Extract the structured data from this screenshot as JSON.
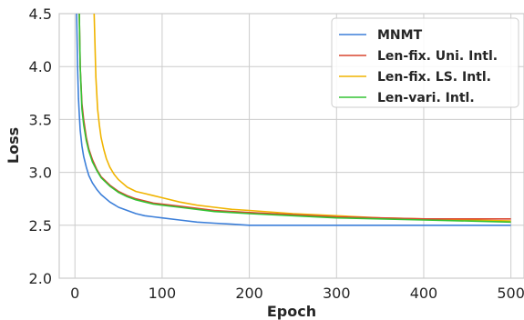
{
  "chart_data": {
    "type": "line",
    "xlabel": "Epoch",
    "ylabel": "Loss",
    "xlim": [
      -18,
      515
    ],
    "ylim": [
      2.0,
      4.5
    ],
    "x_ticks": [
      0,
      100,
      200,
      300,
      400,
      500
    ],
    "y_ticks": [
      2.0,
      2.5,
      3.0,
      3.5,
      4.0,
      4.5
    ],
    "x_tick_labels": [
      "0",
      "100",
      "200",
      "300",
      "400",
      "500"
    ],
    "y_tick_labels": [
      "2.0",
      "2.5",
      "3.0",
      "3.5",
      "4.0",
      "4.5"
    ],
    "grid": true,
    "legend_position": "top-right",
    "series": [
      {
        "name": "MNMT",
        "color": "#3c7fd9",
        "x": [
          1,
          2,
          3,
          4,
          5,
          6,
          8,
          10,
          13,
          16,
          20,
          25,
          30,
          40,
          50,
          60,
          70,
          80,
          90,
          100,
          120,
          140,
          160,
          180,
          200,
          250,
          300,
          350,
          400,
          450,
          500
        ],
        "y": [
          6.0,
          4.5,
          4.0,
          3.7,
          3.55,
          3.4,
          3.25,
          3.15,
          3.05,
          2.97,
          2.9,
          2.84,
          2.79,
          2.72,
          2.67,
          2.64,
          2.61,
          2.59,
          2.58,
          2.57,
          2.55,
          2.53,
          2.52,
          2.51,
          2.5,
          2.5,
          2.5,
          2.5,
          2.5,
          2.5,
          2.5
        ]
      },
      {
        "name": "Len-fix. Uni. Intl.",
        "color": "#d9452e",
        "x": [
          4,
          5,
          6,
          8,
          10,
          13,
          16,
          20,
          25,
          30,
          40,
          50,
          60,
          70,
          80,
          90,
          100,
          120,
          140,
          160,
          180,
          200,
          250,
          300,
          350,
          400,
          450,
          500
        ],
        "y": [
          5.0,
          4.5,
          4.0,
          3.65,
          3.5,
          3.33,
          3.22,
          3.12,
          3.03,
          2.96,
          2.88,
          2.82,
          2.78,
          2.75,
          2.73,
          2.71,
          2.7,
          2.68,
          2.66,
          2.64,
          2.63,
          2.62,
          2.6,
          2.58,
          2.57,
          2.56,
          2.56,
          2.56
        ]
      },
      {
        "name": "Len-fix. LS. Intl.",
        "color": "#f0b400",
        "x": [
          22,
          24,
          26,
          28,
          30,
          33,
          36,
          40,
          45,
          50,
          60,
          70,
          80,
          90,
          100,
          120,
          140,
          160,
          180,
          200,
          250,
          300,
          350,
          400,
          450,
          500
        ],
        "y": [
          4.5,
          3.9,
          3.6,
          3.45,
          3.33,
          3.22,
          3.13,
          3.05,
          2.98,
          2.93,
          2.86,
          2.82,
          2.8,
          2.78,
          2.76,
          2.72,
          2.69,
          2.67,
          2.65,
          2.64,
          2.61,
          2.59,
          2.57,
          2.56,
          2.55,
          2.54
        ]
      },
      {
        "name": "Len-vari. Intl.",
        "color": "#33c333",
        "x": [
          4,
          5,
          6,
          8,
          10,
          13,
          16,
          20,
          25,
          30,
          40,
          50,
          60,
          70,
          80,
          90,
          100,
          120,
          140,
          160,
          180,
          200,
          250,
          300,
          350,
          400,
          450,
          500
        ],
        "y": [
          5.0,
          4.5,
          4.0,
          3.6,
          3.45,
          3.3,
          3.2,
          3.1,
          3.02,
          2.95,
          2.87,
          2.81,
          2.77,
          2.74,
          2.72,
          2.7,
          2.69,
          2.67,
          2.65,
          2.63,
          2.62,
          2.61,
          2.59,
          2.57,
          2.56,
          2.55,
          2.54,
          2.53
        ]
      }
    ]
  }
}
